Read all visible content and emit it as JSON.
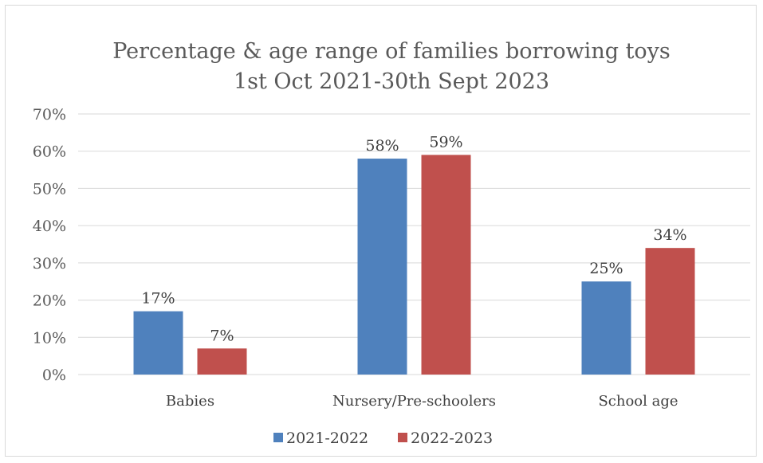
{
  "chart_data": {
    "type": "bar",
    "title": "Percentage & age range of families borrowing toys",
    "subtitle": "1st Oct 2021-30th Sept 2023",
    "categories": [
      "Babies",
      "Nursery/Pre-schoolers",
      "School age"
    ],
    "series": [
      {
        "name": "2021-2022",
        "color": "#4F81BD",
        "values": [
          17,
          58,
          25
        ],
        "labels": [
          "17%",
          "58%",
          "25%"
        ]
      },
      {
        "name": "2022-2023",
        "color": "#C0504D",
        "values": [
          7,
          59,
          34
        ],
        "labels": [
          "7%",
          "59%",
          "34%"
        ]
      }
    ],
    "ylim": [
      0,
      70
    ],
    "yticks": [
      {
        "value": 0,
        "label": "0%"
      },
      {
        "value": 10,
        "label": "10%"
      },
      {
        "value": 20,
        "label": "20%"
      },
      {
        "value": 30,
        "label": "30%"
      },
      {
        "value": 40,
        "label": "40%"
      },
      {
        "value": 50,
        "label": "50%"
      },
      {
        "value": 60,
        "label": "60%"
      },
      {
        "value": 70,
        "label": "70%"
      }
    ],
    "grid": true,
    "legend_position": "bottom"
  }
}
